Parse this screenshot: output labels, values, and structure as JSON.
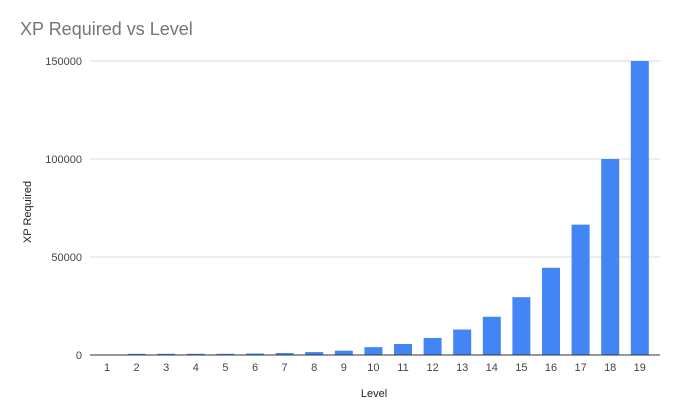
{
  "chart_data": {
    "type": "bar",
    "title": "XP Required vs Level",
    "xlabel": "Level",
    "ylabel": "XP Required",
    "categories": [
      "1",
      "2",
      "3",
      "4",
      "5",
      "6",
      "7",
      "8",
      "9",
      "10",
      "11",
      "12",
      "13",
      "14",
      "15",
      "16",
      "17",
      "18",
      "19"
    ],
    "values": [
      0,
      100,
      200,
      350,
      500,
      750,
      1000,
      1500,
      2200,
      4000,
      5600,
      8700,
      13000,
      19500,
      29500,
      44500,
      66500,
      100000,
      150000
    ],
    "ylim": [
      0,
      150000
    ],
    "yticks": [
      0,
      50000,
      100000,
      150000
    ],
    "grid": true,
    "legend": "none",
    "color": "#4285f4"
  }
}
